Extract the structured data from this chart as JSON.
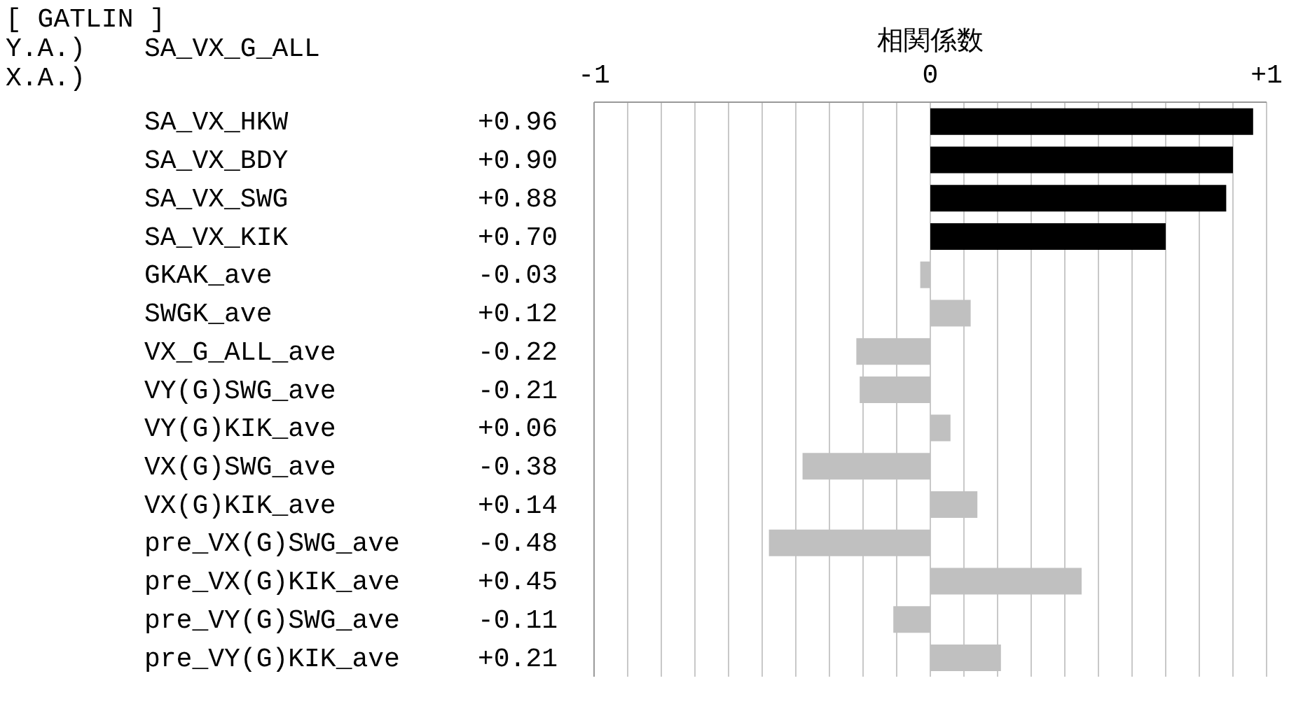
{
  "chart_data": {
    "type": "bar",
    "orientation": "horizontal",
    "title": "[ GATLIN ]",
    "xlabel": "相関係数",
    "annotations": [
      "Y.A.)",
      "SA_VX_G_ALL",
      "X.A.)"
    ],
    "categories": [
      "SA_VX_HKW",
      "SA_VX_BDY",
      "SA_VX_SWG",
      "SA_VX_KIK",
      "GKAK_ave",
      "SWGK_ave",
      "VX_G_ALL_ave",
      "VY(G)SWG_ave",
      "VY(G)KIK_ave",
      "VX(G)SWG_ave",
      "VX(G)KIK_ave",
      "pre_VX(G)SWG_ave",
      "pre_VX(G)KIK_ave",
      "pre_VY(G)SWG_ave",
      "pre_VY(G)KIK_ave"
    ],
    "values": [
      0.96,
      0.9,
      0.88,
      0.7,
      -0.03,
      0.12,
      -0.22,
      -0.21,
      0.06,
      -0.38,
      0.14,
      -0.48,
      0.45,
      -0.11,
      0.21
    ],
    "value_labels": [
      "+0.96",
      "+0.90",
      "+0.88",
      "+0.70",
      "-0.03",
      "+0.12",
      "-0.22",
      "-0.21",
      "+0.06",
      "-0.38",
      "+0.14",
      "-0.48",
      "+0.45",
      "-0.11",
      "+0.21"
    ],
    "colors": [
      "#000000",
      "#000000",
      "#000000",
      "#000000",
      "#c0c0c0",
      "#c0c0c0",
      "#c0c0c0",
      "#c0c0c0",
      "#c0c0c0",
      "#c0c0c0",
      "#c0c0c0",
      "#c0c0c0",
      "#c0c0c0",
      "#c0c0c0",
      "#c0c0c0"
    ],
    "xlim": [
      -1,
      1
    ],
    "xticks": [
      {
        "value": -1,
        "label": "-1"
      },
      {
        "value": -0.9,
        "label": null
      },
      {
        "value": -0.8,
        "label": null
      },
      {
        "value": -0.7,
        "label": null
      },
      {
        "value": -0.6,
        "label": null
      },
      {
        "value": -0.5,
        "label": null
      },
      {
        "value": -0.4,
        "label": null
      },
      {
        "value": -0.3,
        "label": null
      },
      {
        "value": -0.2,
        "label": null
      },
      {
        "value": -0.1,
        "label": null
      },
      {
        "value": 0,
        "label": "0"
      },
      {
        "value": 0.1,
        "label": null
      },
      {
        "value": 0.2,
        "label": null
      },
      {
        "value": 0.3,
        "label": null
      },
      {
        "value": 0.4,
        "label": null
      },
      {
        "value": 0.5,
        "label": null
      },
      {
        "value": 0.6,
        "label": null
      },
      {
        "value": 0.7,
        "label": null
      },
      {
        "value": 0.8,
        "label": null
      },
      {
        "value": 0.9,
        "label": null
      },
      {
        "value": 1,
        "label": "+1"
      }
    ],
    "grid": "x",
    "legend": false
  }
}
